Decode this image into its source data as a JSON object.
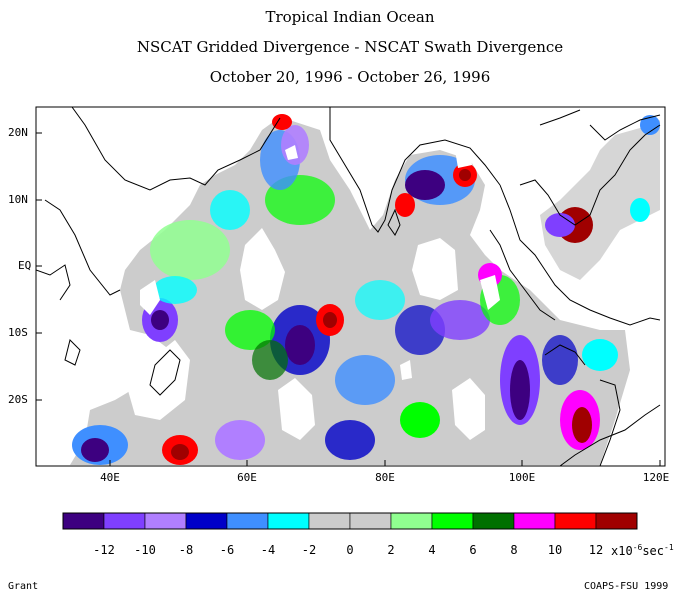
{
  "titles": {
    "line1": "Tropical Indian Ocean",
    "line2": "NSCAT Gridded Divergence - NSCAT Swath Divergence",
    "line3": "October 20, 1996 - October 26, 1996"
  },
  "map": {
    "lon_range": [
      30,
      120
    ],
    "lat_range": [
      -30,
      25
    ],
    "x_ticks": [
      "40E",
      "60E",
      "80E",
      "100E",
      "120E"
    ],
    "y_ticks": [
      "20N",
      "10N",
      "EQ",
      "10S",
      "20S"
    ]
  },
  "colorbar": {
    "colors": [
      "#3d0080",
      "#7f3fff",
      "#b07fff",
      "#0000c8",
      "#3f8fff",
      "#00ffff",
      "#cccccc",
      "#cccccc",
      "#90ff90",
      "#00ff00",
      "#007000",
      "#ff00ff",
      "#ff0000",
      "#a00000"
    ],
    "labels": [
      "-12",
      "-10",
      "-8",
      "-6",
      "-4",
      "-2",
      "0",
      "2",
      "4",
      "6",
      "8",
      "10",
      "12"
    ],
    "unit": "x10",
    "unit_exp": "-6",
    "unit_rest": "sec",
    "unit_exp2": "-1"
  },
  "footer": {
    "left": "Grant",
    "right": "COAPS-FSU 1999"
  }
}
